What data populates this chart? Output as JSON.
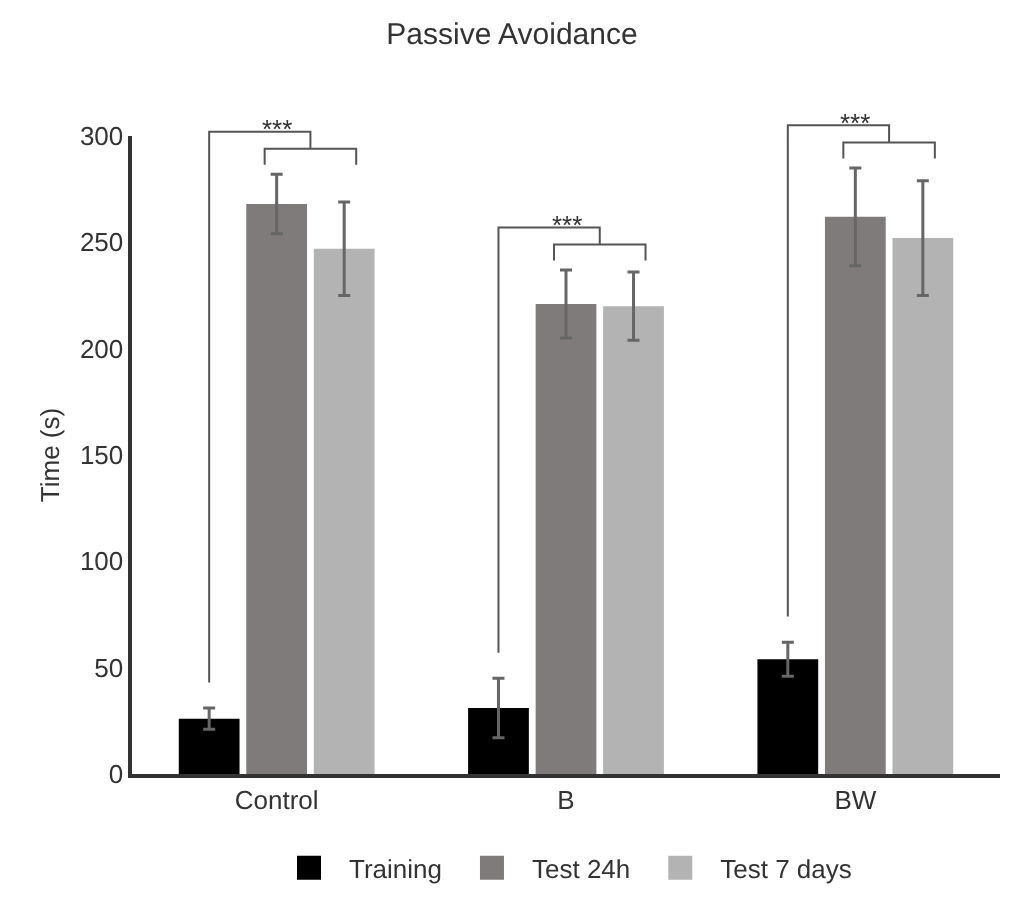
{
  "chart_data": {
    "type": "bar",
    "title": "Passive Avoidance",
    "ylabel": "Time (s)",
    "categories": [
      "Control",
      "B",
      "BW"
    ],
    "series": [
      {
        "name": "Training",
        "color": "#000000",
        "values": [
          26,
          31,
          54
        ],
        "errors": [
          5,
          14,
          8
        ]
      },
      {
        "name": "Test 24h",
        "color": "#7f7b7a",
        "values": [
          268,
          221,
          262
        ],
        "errors": [
          14,
          16,
          23
        ]
      },
      {
        "name": "Test 7 days",
        "color": "#b3b3b3",
        "values": [
          247,
          220,
          252
        ],
        "errors": [
          22,
          16,
          27
        ]
      }
    ],
    "ylim": [
      0,
      300
    ],
    "yticks": [
      0,
      50,
      100,
      150,
      200,
      250,
      300
    ],
    "grid": false,
    "legend": "bottom",
    "annotations": [
      "***",
      "***",
      "***"
    ]
  }
}
